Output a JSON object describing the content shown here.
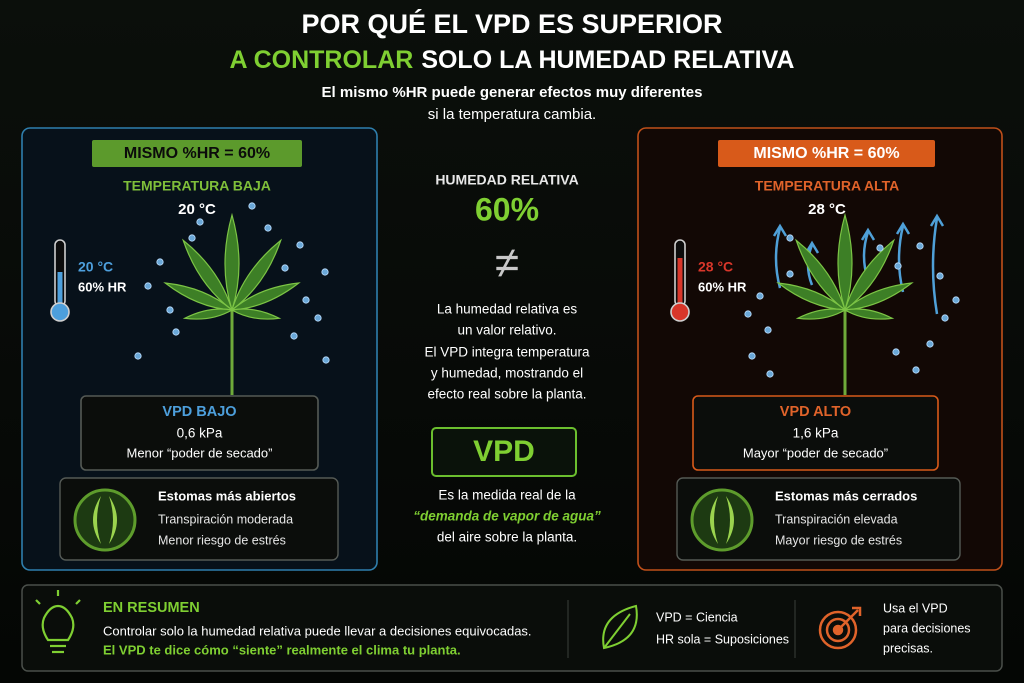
{
  "header": {
    "title": "POR QUÉ EL VPD ES SUPERIOR",
    "title_highlight": "A CONTROLAR",
    "title_rest": "SOLO LA HUMEDAD RELATIVA",
    "subtitle": [
      "El mismo %HR puede generar efectos muy diferentes",
      "si la temperatura cambia."
    ]
  },
  "left_panel": {
    "badge": "MISMO %HR = 60%",
    "condition": "TEMPERATURA BAJA",
    "temperature": "20 °C",
    "gauge_temperature": "20 °C",
    "gauge_humidity": "60% HR",
    "vpd_label": "VPD BAJO",
    "vpd_value": "0,6 kPa",
    "vpd_effect": "Menor “poder de secado”",
    "stomata_title": "Estomas más abiertos",
    "stomata_notes": [
      "Transpiración moderada",
      "Menor riesgo de estrés"
    ]
  },
  "right_panel": {
    "badge": "MISMO %HR = 60%",
    "condition": "TEMPERATURA ALTA",
    "temperature": "28 °C",
    "gauge_temperature": "28 °C",
    "gauge_humidity": "60% HR",
    "vpd_label": "VPD ALTO",
    "vpd_value": "1,6 kPa",
    "vpd_effect": "Mayor “poder de secado”",
    "stomata_title": "Estomas más cerrados",
    "stomata_notes": [
      "Transpiración elevada",
      "Mayor riesgo de estrés"
    ]
  },
  "center": {
    "label": "HUMEDAD RELATIVA",
    "value": "60%",
    "symbol": "≠",
    "explanation": [
      "La humedad relativa es",
      "un valor relativo.",
      "El VPD integra temperatura",
      "y humedad, mostrando el",
      "efecto real sobre la planta."
    ],
    "badge": "VPD",
    "definition": [
      "Es la medida real de la",
      "“demanda de vapor de agua”",
      "del aire sobre la planta."
    ]
  },
  "footer": {
    "summary_title": "EN RESUMEN",
    "summary_lines": [
      "Controlar solo la humedad relativa puede llevar a decisiones equivocadas.",
      "El VPD te dice cómo “siente” realmente el clima tu planta."
    ],
    "comparison": [
      "VPD = Ciencia",
      "HR sola = Suposiciones"
    ],
    "advice": [
      "Usa el VPD",
      "para decisiones",
      "precisas."
    ]
  }
}
